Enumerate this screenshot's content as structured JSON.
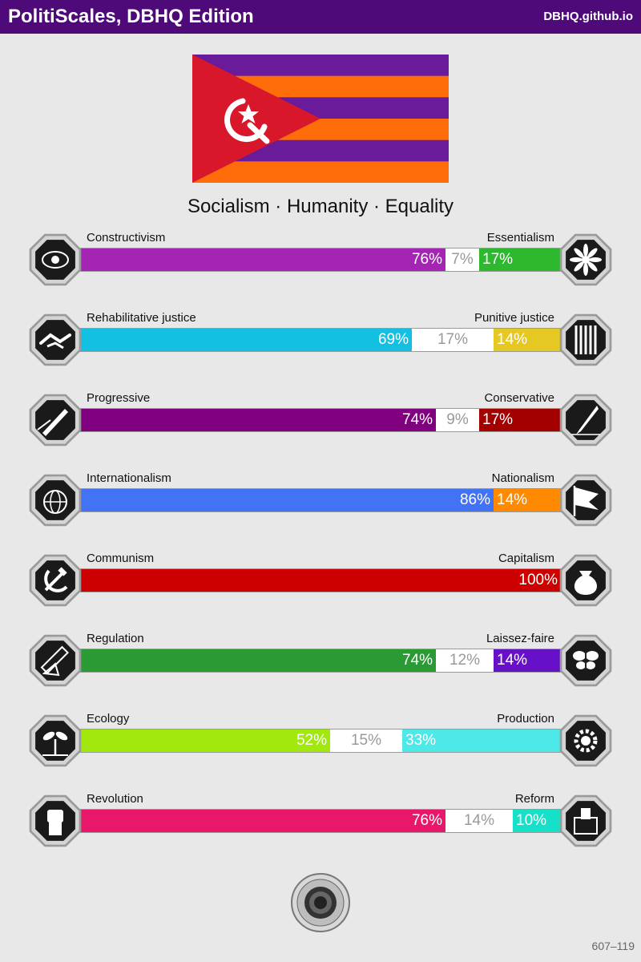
{
  "header": {
    "title": "PolitiScales, DBHQ Edition",
    "site": "DBHQ.github.io"
  },
  "flag": {
    "stripe_colors": [
      "#6a1b9a",
      "#ff6d0a"
    ],
    "triangle_color": "#d8182a",
    "emblem": "hammer-sickle-star-icon"
  },
  "slogan": "Socialism · Humanity · Equality",
  "axes": [
    {
      "left_label": "Constructivism",
      "right_label": "Essentialism",
      "left": 76,
      "mid": 7,
      "right": 17,
      "left_text": "76%",
      "mid_text": "7%",
      "right_text": "17%",
      "left_color": "#a424b4",
      "right_color": "#2eb82e",
      "left_icon": "eye-icon",
      "right_icon": "flower-icon"
    },
    {
      "left_label": "Rehabilitative justice",
      "right_label": "Punitive justice",
      "left": 69,
      "mid": 17,
      "right": 14,
      "left_text": "69%",
      "mid_text": "17%",
      "right_text": "14%",
      "left_color": "#14c0e2",
      "right_color": "#e5c821",
      "left_icon": "handshake-icon",
      "right_icon": "prison-bars-icon"
    },
    {
      "left_label": "Progressive",
      "right_label": "Conservative",
      "left": 74,
      "mid": 9,
      "right": 17,
      "left_text": "74%",
      "mid_text": "9%",
      "right_text": "17%",
      "left_color": "#800080",
      "right_color": "#a30000",
      "left_icon": "rocket-icon",
      "right_icon": "quill-icon"
    },
    {
      "left_label": "Internationalism",
      "right_label": "Nationalism",
      "left": 86,
      "mid": 0,
      "right": 14,
      "left_text": "86%",
      "mid_text": "",
      "right_text": "14%",
      "left_color": "#4273f5",
      "right_color": "#ff8a00",
      "left_icon": "globe-icon",
      "right_icon": "flag-icon"
    },
    {
      "left_label": "Communism",
      "right_label": "Capitalism",
      "left": 100,
      "mid": 0,
      "right": 0,
      "left_text": "100%",
      "mid_text": "",
      "right_text": "",
      "left_color": "#cc0000",
      "right_color": "#ffe100",
      "left_icon": "hammer-sickle-icon",
      "right_icon": "money-bag-icon"
    },
    {
      "left_label": "Regulation",
      "right_label": "Laissez-faire",
      "left": 74,
      "mid": 12,
      "right": 14,
      "left_text": "74%",
      "mid_text": "12%",
      "right_text": "14%",
      "left_color": "#2a9a34",
      "right_color": "#6610c8",
      "left_icon": "ruler-icon",
      "right_icon": "butterfly-icon"
    },
    {
      "left_label": "Ecology",
      "right_label": "Production",
      "left": 52,
      "mid": 15,
      "right": 33,
      "left_text": "52%",
      "mid_text": "15%",
      "right_text": "33%",
      "left_color": "#a0e80e",
      "right_color": "#4de8e8",
      "left_icon": "sprout-icon",
      "right_icon": "gear-icon"
    },
    {
      "left_label": "Revolution",
      "right_label": "Reform",
      "left": 76,
      "mid": 14,
      "right": 10,
      "left_text": "76%",
      "mid_text": "14%",
      "right_text": "10%",
      "left_color": "#e9176a",
      "right_color": "#17e0c8",
      "left_icon": "fist-icon",
      "right_icon": "ballot-box-icon"
    }
  ],
  "seal_icon": "seal-icon",
  "footer": "607–119"
}
